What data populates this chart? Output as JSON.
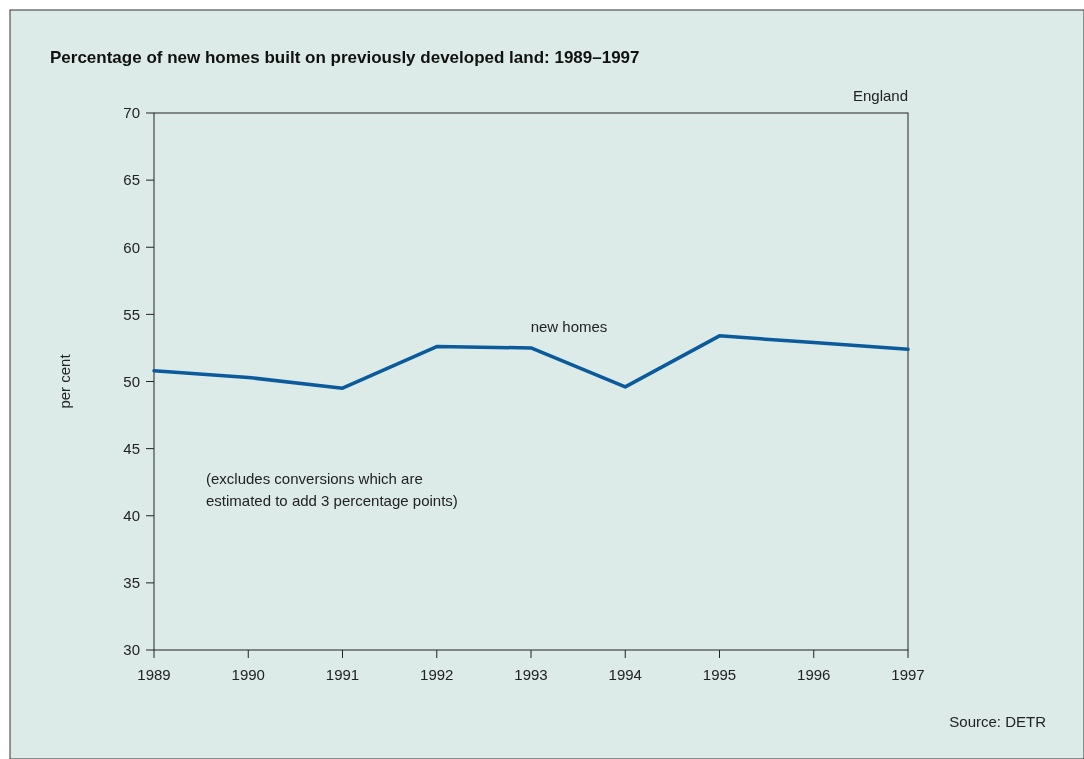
{
  "chart_data": {
    "type": "line",
    "title": "Percentage of new homes built on previously developed land: 1989–1997",
    "ylabel": "per cent",
    "x": [
      1989,
      1990,
      1991,
      1992,
      1993,
      1994,
      1995,
      1996,
      1997
    ],
    "series": [
      {
        "name": "new homes",
        "color": "#0a5a9c",
        "values": [
          50.8,
          50.3,
          49.5,
          52.6,
          52.5,
          49.6,
          53.4,
          52.9,
          52.4
        ]
      }
    ],
    "xlim": [
      1989,
      1997
    ],
    "xticks": [
      1989,
      1990,
      1991,
      1992,
      1993,
      1994,
      1995,
      1996,
      1997
    ],
    "ylim": [
      30,
      70
    ],
    "yticks": [
      30,
      35,
      40,
      45,
      50,
      55,
      60,
      65,
      70
    ],
    "grid": false,
    "marker": "none",
    "line_style": "solid",
    "annotations": [
      "England",
      "(excludes conversions which are\nestimated to add 3 percentage points)",
      "Source: DETR"
    ]
  }
}
